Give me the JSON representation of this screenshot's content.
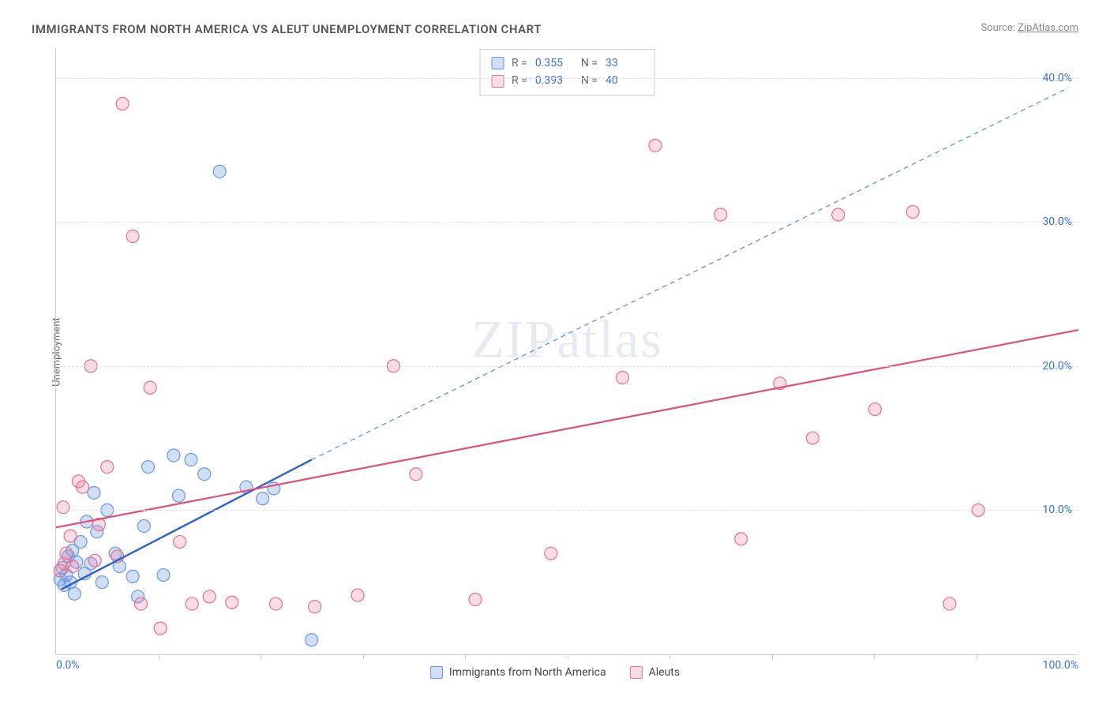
{
  "title": "IMMIGRANTS FROM NORTH AMERICA VS ALEUT UNEMPLOYMENT CORRELATION CHART",
  "source_label": "Source:",
  "source_name": "ZipAtlas.com",
  "watermark": "ZIPatlas",
  "ylabel": "Unemployment",
  "chart": {
    "type": "scatter",
    "xlim": [
      0,
      100
    ],
    "ylim": [
      0,
      42
    ],
    "x_ticks_minor": [
      10,
      20,
      30,
      40,
      50,
      60,
      70,
      80,
      90
    ],
    "x_tick_labels": [
      {
        "v": 0,
        "label": "0.0%",
        "align": "left"
      },
      {
        "v": 100,
        "label": "100.0%",
        "align": "right"
      }
    ],
    "y_gridlines": [
      10,
      20,
      30,
      40
    ],
    "y_tick_labels": [
      {
        "v": 10,
        "label": "10.0%"
      },
      {
        "v": 20,
        "label": "20.0%"
      },
      {
        "v": 30,
        "label": "30.0%"
      },
      {
        "v": 40,
        "label": "40.0%"
      }
    ],
    "marker_radius": 8,
    "grid_color": "#e0e0e0",
    "axis_color": "#cccccc",
    "label_color": "#3b6fd6",
    "series": [
      {
        "id": "immigrants",
        "name": "Immigrants from North America",
        "color_fill": "rgba(120,160,230,0.35)",
        "color_stroke": "#6a97e0",
        "R": "0.355",
        "N": "33",
        "points": [
          [
            0.4,
            5.2
          ],
          [
            0.6,
            6.0
          ],
          [
            0.8,
            4.8
          ],
          [
            1.0,
            5.5
          ],
          [
            1.2,
            6.8
          ],
          [
            1.4,
            5.0
          ],
          [
            1.6,
            7.2
          ],
          [
            1.8,
            4.2
          ],
          [
            2.0,
            6.4
          ],
          [
            2.4,
            7.8
          ],
          [
            2.8,
            5.6
          ],
          [
            3.0,
            9.2
          ],
          [
            3.4,
            6.3
          ],
          [
            3.7,
            11.2
          ],
          [
            4.0,
            8.5
          ],
          [
            4.5,
            5.0
          ],
          [
            5.0,
            10.0
          ],
          [
            5.8,
            7.0
          ],
          [
            6.2,
            6.1
          ],
          [
            7.5,
            5.4
          ],
          [
            8.0,
            4.0
          ],
          [
            8.6,
            8.9
          ],
          [
            9.0,
            13.0
          ],
          [
            10.5,
            5.5
          ],
          [
            11.5,
            13.8
          ],
          [
            12.0,
            11.0
          ],
          [
            13.2,
            13.5
          ],
          [
            14.5,
            12.5
          ],
          [
            16.0,
            33.5
          ],
          [
            18.6,
            11.6
          ],
          [
            20.2,
            10.8
          ],
          [
            21.3,
            11.5
          ],
          [
            25.0,
            1.0
          ]
        ],
        "trend": {
          "x1": 0.5,
          "y1": 4.5,
          "x2": 25,
          "y2": 13.5,
          "style": "solid",
          "width": 2.4,
          "color": "#2b60d0"
        },
        "trend_ext": {
          "x1": 25,
          "y1": 13.5,
          "x2": 99,
          "y2": 39.3,
          "style": "dashed",
          "width": 1.4,
          "color": "#6a97e0"
        }
      },
      {
        "id": "aleuts",
        "name": "Aleuts",
        "color_fill": "rgba(235,130,160,0.28)",
        "color_stroke": "#e0718f",
        "R": "0.393",
        "N": "40",
        "points": [
          [
            0.4,
            5.8
          ],
          [
            0.7,
            10.2
          ],
          [
            0.8,
            6.3
          ],
          [
            1.0,
            7.0
          ],
          [
            1.4,
            8.2
          ],
          [
            1.6,
            6.1
          ],
          [
            2.2,
            12.0
          ],
          [
            2.6,
            11.6
          ],
          [
            3.4,
            20.0
          ],
          [
            3.8,
            6.5
          ],
          [
            4.2,
            9.0
          ],
          [
            5.0,
            13.0
          ],
          [
            6.0,
            6.8
          ],
          [
            6.5,
            38.2
          ],
          [
            7.5,
            29.0
          ],
          [
            8.3,
            3.5
          ],
          [
            9.2,
            18.5
          ],
          [
            10.2,
            1.8
          ],
          [
            12.1,
            7.8
          ],
          [
            13.3,
            3.5
          ],
          [
            15.0,
            4.0
          ],
          [
            17.2,
            3.6
          ],
          [
            21.5,
            3.5
          ],
          [
            25.3,
            3.3
          ],
          [
            29.5,
            4.1
          ],
          [
            33.0,
            20.0
          ],
          [
            35.2,
            12.5
          ],
          [
            41.0,
            3.8
          ],
          [
            48.4,
            7.0
          ],
          [
            55.4,
            19.2
          ],
          [
            58.6,
            35.3
          ],
          [
            65.0,
            30.5
          ],
          [
            67.0,
            8.0
          ],
          [
            70.8,
            18.8
          ],
          [
            74.0,
            15.0
          ],
          [
            76.5,
            30.5
          ],
          [
            80.1,
            17.0
          ],
          [
            83.8,
            30.7
          ],
          [
            87.4,
            3.5
          ],
          [
            90.2,
            10.0
          ]
        ],
        "trend": {
          "x1": 0,
          "y1": 8.8,
          "x2": 100,
          "y2": 22.5,
          "style": "solid",
          "width": 2.2,
          "color": "#e0506f"
        }
      }
    ]
  },
  "legend_top_labels": {
    "R": "R =",
    "N": "N ="
  },
  "legend_bottom": [
    {
      "series": "immigrants"
    },
    {
      "series": "aleuts"
    }
  ]
}
